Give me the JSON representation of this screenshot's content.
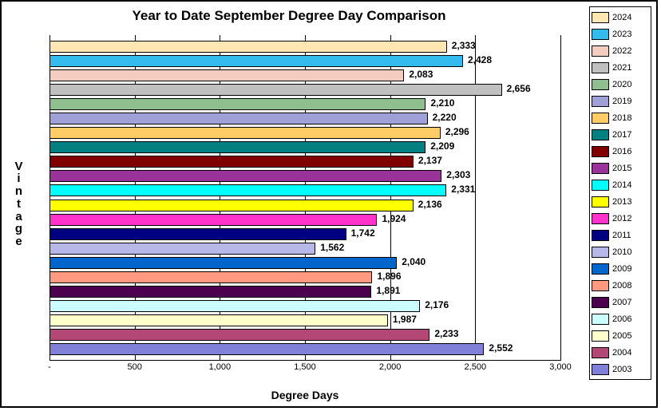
{
  "chart": {
    "type": "bar-horizontal",
    "title": "Year to Date September Degree Day Comparison",
    "xlabel": "Degree Days",
    "ylabel": "Vintage",
    "xlim": [
      0,
      3000
    ],
    "xtick_step": 500,
    "xticks": [
      "-",
      "500",
      "1,000",
      "1,500",
      "2,000",
      "2,500",
      "3,000"
    ],
    "title_fontsize": 17,
    "axis_label_fontsize": 14,
    "tick_fontsize": 11,
    "bar_label_fontsize": 12,
    "background_color": "#ffffff",
    "grid_color": "#000000",
    "border_color": "#000000",
    "series": [
      {
        "year": "2024",
        "value": 2333,
        "label": "2,333",
        "color": "#ffe6b3"
      },
      {
        "year": "2023",
        "value": 2428,
        "label": "2,428",
        "color": "#33bbee"
      },
      {
        "year": "2022",
        "value": 2083,
        "label": "2,083",
        "color": "#f4ccc0"
      },
      {
        "year": "2021",
        "value": 2656,
        "label": "2,656",
        "color": "#c0c0c0"
      },
      {
        "year": "2020",
        "value": 2210,
        "label": "2,210",
        "color": "#8fbf8f"
      },
      {
        "year": "2019",
        "value": 2220,
        "label": "2,220",
        "color": "#a0a0d8"
      },
      {
        "year": "2018",
        "value": 2296,
        "label": "2,296",
        "color": "#ffcc66"
      },
      {
        "year": "2017",
        "value": 2209,
        "label": "2,209",
        "color": "#008080"
      },
      {
        "year": "2016",
        "value": 2137,
        "label": "2,137",
        "color": "#800000"
      },
      {
        "year": "2015",
        "value": 2303,
        "label": "2,303",
        "color": "#993399"
      },
      {
        "year": "2014",
        "value": 2331,
        "label": "2,331",
        "color": "#00ffff"
      },
      {
        "year": "2013",
        "value": 2136,
        "label": "2,136",
        "color": "#ffff00"
      },
      {
        "year": "2012",
        "value": 1924,
        "label": "1,924",
        "color": "#ff33cc"
      },
      {
        "year": "2011",
        "value": 1742,
        "label": "1,742",
        "color": "#000080"
      },
      {
        "year": "2010",
        "value": 1562,
        "label": "1,562",
        "color": "#b8b8e8"
      },
      {
        "year": "2009",
        "value": 2040,
        "label": "2,040",
        "color": "#0066cc"
      },
      {
        "year": "2008",
        "value": 1896,
        "label": "1,896",
        "color": "#ff9980"
      },
      {
        "year": "2007",
        "value": 1891,
        "label": "1,891",
        "color": "#4d004d"
      },
      {
        "year": "2006",
        "value": 2176,
        "label": "2,176",
        "color": "#ccffff"
      },
      {
        "year": "2005",
        "value": 1987,
        "label": "1,987",
        "color": "#ffffcc"
      },
      {
        "year": "2004",
        "value": 2233,
        "label": "2,233",
        "color": "#b34775"
      },
      {
        "year": "2003",
        "value": 2552,
        "label": "2,552",
        "color": "#8080d8"
      }
    ]
  }
}
